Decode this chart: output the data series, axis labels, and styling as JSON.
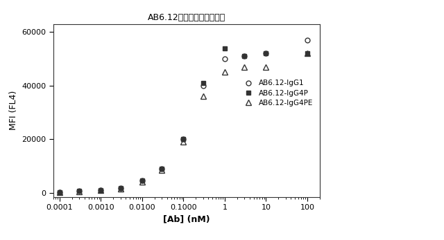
{
  "title": "AB6.12アイソタイプ変異体",
  "xlabel": "[Ab] (nM)",
  "ylabel": "MFI (FL4)",
  "ylim": [
    -1500,
    63000
  ],
  "yticks": [
    0,
    20000,
    40000,
    60000
  ],
  "ytick_labels": [
    "0",
    "20000",
    "40000",
    "60000"
  ],
  "series": [
    {
      "label": "AB6.12-IgG1",
      "marker": "o",
      "fillstyle": "none",
      "x": [
        0.0001,
        0.0003,
        0.001,
        0.003,
        0.01,
        0.03,
        0.1,
        0.3,
        1.0,
        3.0,
        10.0,
        100.0
      ],
      "y": [
        300,
        600,
        1000,
        1800,
        4500,
        9000,
        20000,
        40000,
        50000,
        51000,
        52000,
        57000
      ]
    },
    {
      "label": "AB6.12-IgG4P",
      "marker": "s",
      "fillstyle": "full",
      "x": [
        0.0001,
        0.0003,
        0.001,
        0.003,
        0.01,
        0.03,
        0.1,
        0.3,
        1.0,
        3.0,
        10.0,
        100.0
      ],
      "y": [
        300,
        600,
        1000,
        1800,
        4500,
        9000,
        20000,
        41000,
        54000,
        51000,
        52000,
        52000
      ]
    },
    {
      "label": "AB6.12-IgG4PE",
      "marker": "^",
      "fillstyle": "none",
      "x": [
        0.0001,
        0.0003,
        0.001,
        0.003,
        0.01,
        0.03,
        0.1,
        0.3,
        1.0,
        3.0,
        10.0,
        100.0
      ],
      "y": [
        300,
        500,
        900,
        1600,
        4000,
        8500,
        19000,
        36000,
        45000,
        47000,
        47000,
        52000
      ]
    }
  ],
  "background_color": "#ffffff",
  "title_fontsize": 9,
  "label_fontsize": 9,
  "tick_fontsize": 8,
  "line_color": "#333333",
  "marker_colors": [
    "#333333",
    "#333333",
    "#333333"
  ]
}
